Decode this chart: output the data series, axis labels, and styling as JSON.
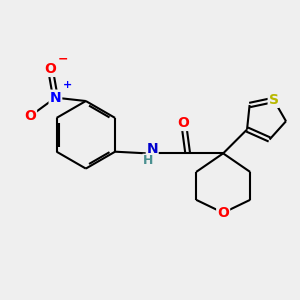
{
  "background_color": "#efefef",
  "bond_color": "#000000",
  "bond_width": 1.5,
  "atom_colors": {
    "O": "#ff0000",
    "N_nitro": "#0000ff",
    "N_amide": "#0000cd",
    "S": "#b8b800",
    "H": "#4a9090",
    "C": "#000000"
  },
  "font_size": 10,
  "font_size_small": 7
}
